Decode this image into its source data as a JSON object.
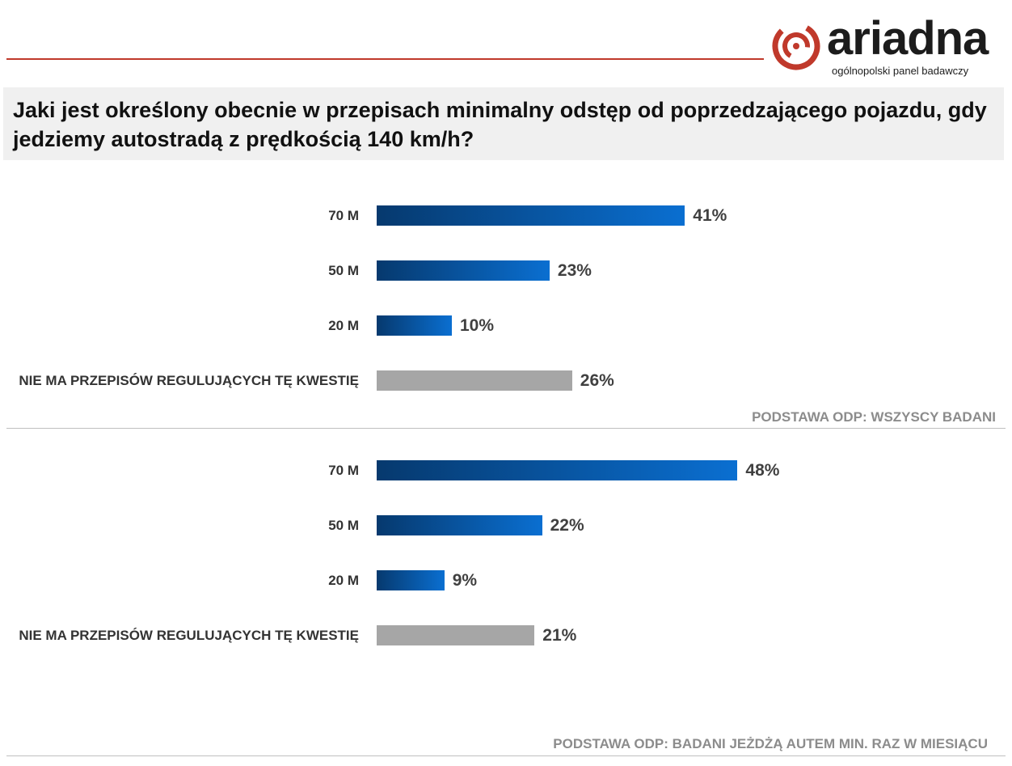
{
  "brand": {
    "name": "ariadna",
    "tagline": "ogólnopolski panel badawczy",
    "colors": {
      "accent": "#c0392b",
      "bar_dark": "#06396e",
      "bar_light": "#0a6fd1",
      "bar_gray": "#a6a6a6"
    }
  },
  "question": "Jaki jest określony obecnie w przepisach minimalny odstęp od poprzedzającego pojazdu, gdy jedziemy autostradą z prędkością 140 km/h?",
  "chart_data": [
    {
      "type": "bar",
      "orientation": "horizontal",
      "categories": [
        "70 M",
        "50 M",
        "20 M",
        "NIE MA PRZEPISÓW REGULUJĄCYCH TĘ KWESTIĘ"
      ],
      "values": [
        41,
        23,
        10,
        26
      ],
      "value_labels": [
        "41%",
        "23%",
        "10%",
        "26%"
      ],
      "bar_styles": [
        "gradient",
        "gradient",
        "gradient",
        "gray"
      ],
      "note": "PODSTAWA  ODP: WSZYSCY BADANI"
    },
    {
      "type": "bar",
      "orientation": "horizontal",
      "categories": [
        "70 M",
        "50 M",
        "20 M",
        "NIE MA PRZEPISÓW REGULUJĄCYCH TĘ KWESTIĘ"
      ],
      "values": [
        48,
        22,
        9,
        21
      ],
      "value_labels": [
        "48%",
        "22%",
        "9%",
        "21%"
      ],
      "bar_styles": [
        "gradient",
        "gradient",
        "gradient",
        "gray"
      ],
      "note": "PODSTAWA  ODP: BADANI JEŻDŻĄ AUTEM  MIN. RAZ W MIESIĄCU"
    }
  ]
}
